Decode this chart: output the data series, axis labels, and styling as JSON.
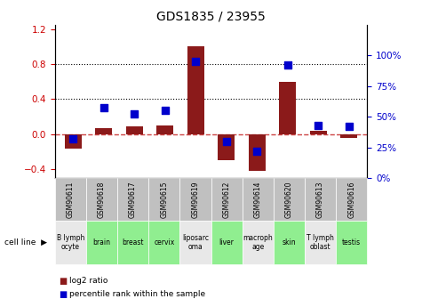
{
  "title": "GDS1835 / 23955",
  "gsm_labels": [
    "GSM90611",
    "GSM90618",
    "GSM90617",
    "GSM90615",
    "GSM90619",
    "GSM90612",
    "GSM90614",
    "GSM90620",
    "GSM90613",
    "GSM90616"
  ],
  "cell_labels": [
    "B lymph\nocyte",
    "brain",
    "breast",
    "cervix",
    "liposarc\noma",
    "liver",
    "macroph\nage",
    "skin",
    "T lymph\noblast",
    "testis"
  ],
  "log2_ratio": [
    -0.16,
    0.07,
    0.09,
    0.1,
    1.0,
    -0.3,
    -0.42,
    0.6,
    0.04,
    -0.04
  ],
  "percentile_rank": [
    32,
    57,
    52,
    55,
    95,
    30,
    22,
    92,
    43,
    42
  ],
  "bar_color": "#8B1A1A",
  "dot_color": "#0000CC",
  "ylim_left": [
    -0.5,
    1.25
  ],
  "ylim_right": [
    0,
    125
  ],
  "yticks_left": [
    -0.4,
    0.0,
    0.4,
    0.8,
    1.2
  ],
  "yticks_right": [
    0,
    25,
    50,
    75,
    100
  ],
  "hline_dotted": [
    0.4,
    0.8
  ],
  "cell_bg_gray": "#C0C0C0",
  "cell_bg_green": "#90EE90",
  "cell_bg_light": "#E8E8E8",
  "green_indices": [
    1,
    2,
    3,
    5,
    7,
    9
  ],
  "left_tick_color": "#CC0000",
  "right_tick_color": "#0000CC",
  "bar_width": 0.55,
  "dot_size": 30
}
